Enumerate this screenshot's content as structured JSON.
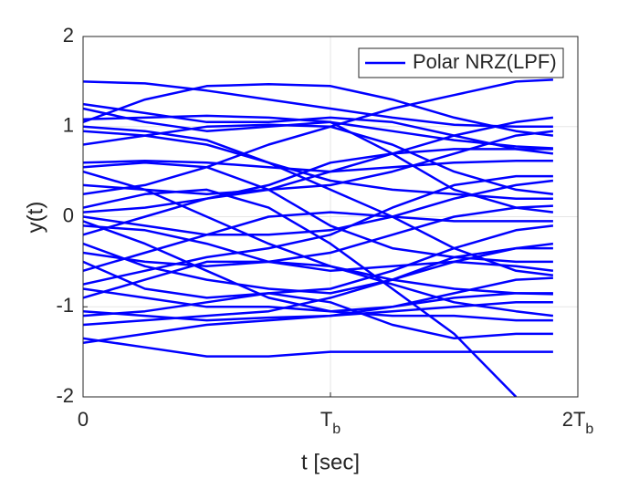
{
  "chart_data": {
    "type": "line",
    "xlabel": "t [sec]",
    "ylabel": "y(t)",
    "color": "#0000ff",
    "grid": true,
    "legend": "upper right",
    "x": [
      0,
      0.25,
      0.5,
      0.75,
      1,
      1.25,
      1.5,
      1.75,
      1.9
    ],
    "xlim": [
      0,
      2
    ],
    "xticks": [
      0,
      {
        "value": 1,
        "label": "Tb"
      },
      {
        "value": 2,
        "label": "2Tb"
      }
    ],
    "ylim": [
      -2,
      2
    ],
    "yticks": [
      -2,
      -1,
      0,
      1,
      2
    ],
    "series": [
      {
        "name": "Polar NRZ(LPF)",
        "values": [
          1.5,
          1.48,
          1.4,
          1.3,
          1.2,
          1.1,
          1.02,
          1.0,
          1.0
        ]
      },
      {
        "values": [
          1.08,
          1.1,
          1.12,
          1.1,
          1.05,
          0.95,
          0.85,
          0.78,
          0.76
        ]
      },
      {
        "values": [
          1.05,
          1.3,
          1.45,
          1.47,
          1.45,
          1.3,
          1.1,
          0.95,
          0.9
        ]
      },
      {
        "values": [
          1.2,
          1.05,
          0.95,
          1.0,
          1.05,
          0.7,
          0.3,
          0.1,
          0.05
        ]
      },
      {
        "values": [
          0.95,
          0.9,
          0.8,
          0.6,
          0.4,
          0.3,
          0.25,
          0.2,
          0.2
        ]
      },
      {
        "values": [
          0.6,
          0.62,
          0.6,
          0.55,
          0.5,
          0.55,
          0.6,
          0.62,
          0.62
        ]
      },
      {
        "values": [
          0.5,
          0.3,
          0.0,
          -0.3,
          -0.55,
          -0.7,
          -0.8,
          -0.85,
          -0.86
        ]
      },
      {
        "values": [
          0.25,
          0.35,
          0.55,
          0.8,
          1.0,
          1.2,
          1.35,
          1.5,
          1.52
        ]
      },
      {
        "values": [
          0.0,
          -0.1,
          -0.2,
          -0.2,
          -0.15,
          0.0,
          0.2,
          0.35,
          0.4
        ]
      },
      {
        "values": [
          -0.05,
          -0.3,
          -0.6,
          -0.9,
          -1.05,
          -1.1,
          -1.1,
          -1.15,
          -1.15
        ]
      },
      {
        "values": [
          -0.2,
          0.0,
          0.2,
          0.3,
          0.35,
          0.5,
          0.7,
          0.9,
          0.95
        ]
      },
      {
        "values": [
          -0.4,
          -0.5,
          -0.55,
          -0.5,
          -0.4,
          -0.2,
          0.0,
          0.1,
          0.12
        ]
      },
      {
        "values": [
          -0.6,
          -0.4,
          -0.2,
          0.0,
          0.05,
          0.0,
          -0.05,
          -0.05,
          -0.05
        ]
      },
      {
        "values": [
          -0.8,
          -0.9,
          -1.0,
          -1.0,
          -1.05,
          -1.0,
          -0.9,
          -0.85,
          -0.85
        ]
      },
      {
        "values": [
          -0.9,
          -0.7,
          -0.5,
          -0.5,
          -0.55,
          -0.75,
          -0.95,
          -1.05,
          -1.1
        ]
      },
      {
        "values": [
          -1.05,
          -1.1,
          -1.15,
          -1.12,
          -1.1,
          -1.0,
          -0.85,
          -0.7,
          -0.68
        ]
      },
      {
        "values": [
          -1.1,
          -1.05,
          -0.95,
          -0.85,
          -0.8,
          -0.6,
          -0.35,
          -0.15,
          -0.1
        ]
      },
      {
        "values": [
          -1.35,
          -1.45,
          -1.55,
          -1.55,
          -1.5,
          -1.5,
          -1.5,
          -1.5,
          -1.5
        ]
      },
      {
        "values": [
          -1.4,
          -1.3,
          -1.2,
          -1.15,
          -1.1,
          -1.05,
          -1.0,
          -0.95,
          -0.95
        ]
      },
      {
        "values": [
          0.1,
          0.25,
          0.3,
          0.1,
          -0.3,
          -0.8,
          -1.3,
          -2.0,
          null
        ]
      },
      {
        "values": [
          1.0,
          0.95,
          0.85,
          0.6,
          0.3,
          0.0,
          -0.35,
          -0.6,
          -0.65
        ]
      },
      {
        "values": [
          0.8,
          0.9,
          1.0,
          1.02,
          1.0,
          0.8,
          0.5,
          0.3,
          0.25
        ]
      },
      {
        "values": [
          -0.3,
          -0.55,
          -0.7,
          -0.8,
          -0.85,
          -0.7,
          -0.5,
          -0.35,
          -0.3
        ]
      },
      {
        "values": [
          0.35,
          0.3,
          0.25,
          0.3,
          0.5,
          0.7,
          0.9,
          1.05,
          1.1
        ]
      },
      {
        "values": [
          -0.5,
          -0.8,
          -0.9,
          -0.85,
          -0.95,
          -1.2,
          -1.35,
          -1.3,
          -1.3
        ]
      },
      {
        "values": [
          1.25,
          1.15,
          1.05,
          1.05,
          1.1,
          1.05,
          0.9,
          0.75,
          0.7
        ]
      },
      {
        "values": [
          -0.1,
          -0.15,
          -0.3,
          -0.5,
          -0.6,
          -0.55,
          -0.5,
          -0.55,
          -0.6
        ]
      },
      {
        "values": [
          0.55,
          0.6,
          0.55,
          0.3,
          -0.1,
          -0.35,
          -0.45,
          -0.5,
          -0.5
        ]
      },
      {
        "values": [
          -0.75,
          -0.6,
          -0.45,
          -0.35,
          -0.2,
          0.1,
          0.35,
          0.45,
          0.45
        ]
      },
      {
        "values": [
          -1.2,
          -1.15,
          -1.1,
          -1.05,
          -0.9,
          -0.7,
          -0.45,
          -0.35,
          -0.35
        ]
      },
      {
        "values": [
          0.05,
          0.1,
          0.2,
          0.35,
          0.6,
          0.7,
          0.75,
          0.75,
          0.75
        ]
      }
    ]
  }
}
